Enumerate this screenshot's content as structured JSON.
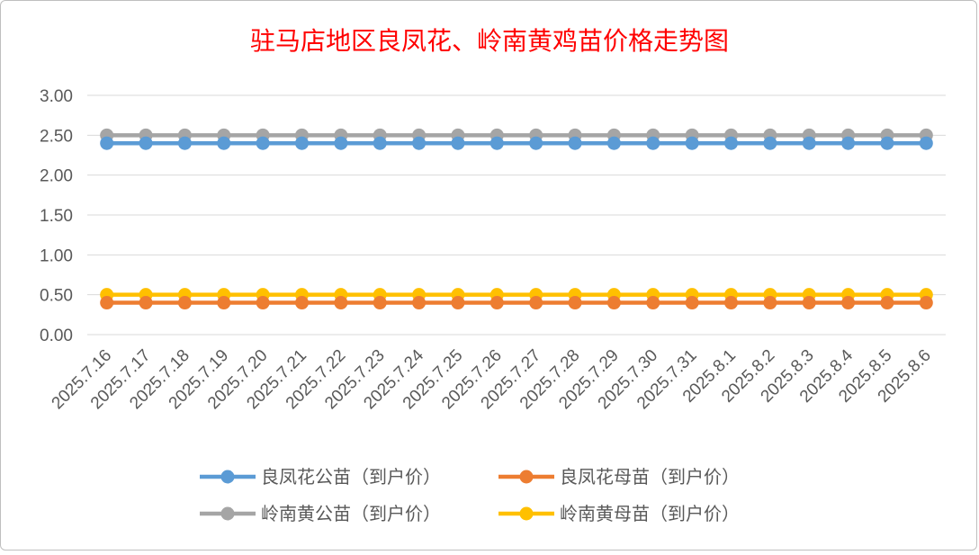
{
  "chart_data": {
    "type": "line",
    "title": "驻马店地区良凤花、岭南黄鸡苗价格走势图",
    "xlabel": "",
    "ylabel": "",
    "ylim": [
      0,
      3
    ],
    "yticks": [
      "0.00",
      "0.50",
      "1.00",
      "1.50",
      "2.00",
      "2.50",
      "3.00"
    ],
    "grid": true,
    "legend_position": "bottom",
    "categories": [
      "2025.7.16",
      "2025.7.17",
      "2025.7.18",
      "2025.7.19",
      "2025.7.20",
      "2025.7.21",
      "2025.7.22",
      "2025.7.23",
      "2025.7.24",
      "2025.7.25",
      "2025.7.26",
      "2025.7.27",
      "2025.7.28",
      "2025.7.29",
      "2025.7.30",
      "2025.7.31",
      "2025.8.1",
      "2025.8.2",
      "2025.8.3",
      "2025.8.4",
      "2025.8.5",
      "2025.8.6"
    ],
    "series": [
      {
        "name": "良凤花公苗（到户价）",
        "color": "#5b9bd5",
        "values": [
          2.4,
          2.4,
          2.4,
          2.4,
          2.4,
          2.4,
          2.4,
          2.4,
          2.4,
          2.4,
          2.4,
          2.4,
          2.4,
          2.4,
          2.4,
          2.4,
          2.4,
          2.4,
          2.4,
          2.4,
          2.4,
          2.4
        ]
      },
      {
        "name": "良凤花母苗（到户价）",
        "color": "#ed7d31",
        "values": [
          0.4,
          0.4,
          0.4,
          0.4,
          0.4,
          0.4,
          0.4,
          0.4,
          0.4,
          0.4,
          0.4,
          0.4,
          0.4,
          0.4,
          0.4,
          0.4,
          0.4,
          0.4,
          0.4,
          0.4,
          0.4,
          0.4
        ]
      },
      {
        "name": "岭南黄公苗（到户价）",
        "color": "#a5a5a5",
        "values": [
          2.5,
          2.5,
          2.5,
          2.5,
          2.5,
          2.5,
          2.5,
          2.5,
          2.5,
          2.5,
          2.5,
          2.5,
          2.5,
          2.5,
          2.5,
          2.5,
          2.5,
          2.5,
          2.5,
          2.5,
          2.5,
          2.5
        ]
      },
      {
        "name": "岭南黄母苗（到户价）",
        "color": "#ffc000",
        "values": [
          0.5,
          0.5,
          0.5,
          0.5,
          0.5,
          0.5,
          0.5,
          0.5,
          0.5,
          0.5,
          0.5,
          0.5,
          0.5,
          0.5,
          0.5,
          0.5,
          0.5,
          0.5,
          0.5,
          0.5,
          0.5,
          0.5
        ]
      }
    ]
  }
}
